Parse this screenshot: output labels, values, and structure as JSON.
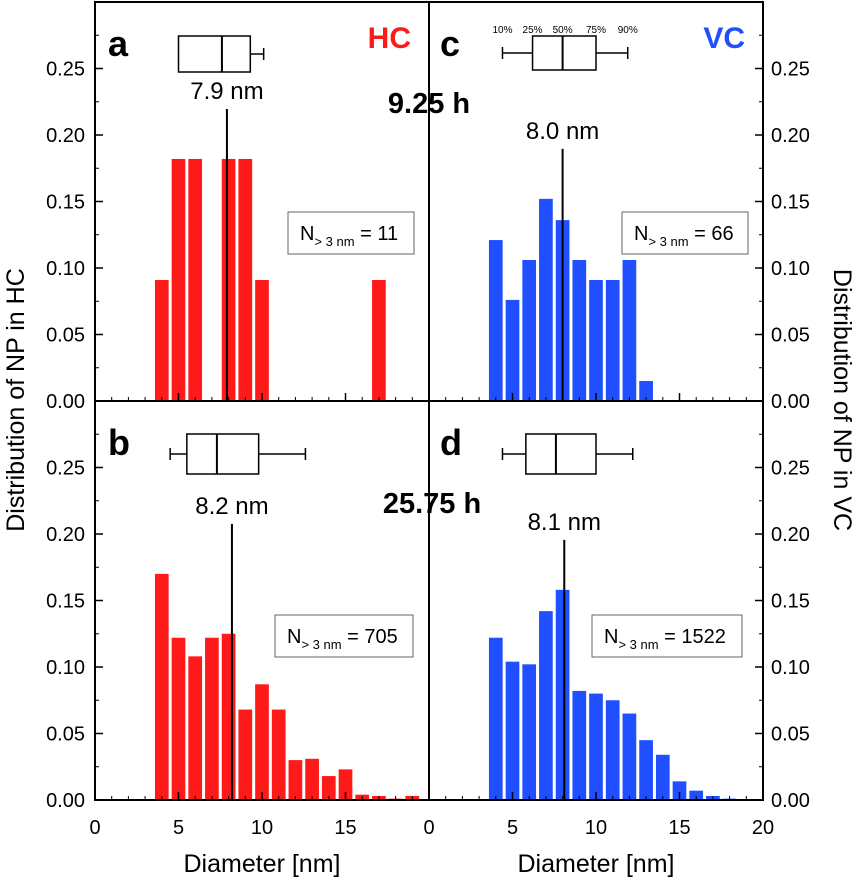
{
  "figure": {
    "ylabel_left": "Distribution of NP in HC",
    "ylabel_right": "Distribution of NP in VC",
    "xlabel": "Diameter [nm]",
    "time_top": "9.25 h",
    "time_bottom": "25.75 h",
    "legend_hc": "HC",
    "legend_vc": "VC",
    "colors": {
      "hc": "#ff1a1a",
      "vc": "#1f4fff",
      "axis": "#000000"
    }
  },
  "chart_data": [
    {
      "id": "a",
      "panel_label": "a",
      "type": "bar",
      "series_name": "HC",
      "xlim": [
        0,
        20
      ],
      "ylim": [
        0,
        0.3
      ],
      "bin_width": 1,
      "x": [
        4,
        5,
        6,
        8,
        9,
        10,
        17
      ],
      "values": [
        0.091,
        0.182,
        0.182,
        0.182,
        0.182,
        0.091,
        0.091
      ],
      "mean": 7.9,
      "mean_label": "7.9 nm",
      "n_label": "= 11",
      "n_subscript": "> 3 nm",
      "n_symbol": "N",
      "boxplot": {
        "p10": null,
        "p25": 5,
        "p50": 7.6,
        "p75": 9.3,
        "p90": 10.1
      }
    },
    {
      "id": "c",
      "panel_label": "c",
      "type": "bar",
      "series_name": "VC",
      "xlim": [
        0,
        20
      ],
      "ylim": [
        0,
        0.3
      ],
      "bin_width": 1,
      "x": [
        4,
        5,
        6,
        7,
        8,
        9,
        10,
        11,
        12,
        13
      ],
      "values": [
        0.121,
        0.076,
        0.106,
        0.152,
        0.136,
        0.106,
        0.091,
        0.091,
        0.106,
        0.015
      ],
      "mean": 8.0,
      "mean_label": "8.0 nm",
      "n_label": "= 66",
      "n_subscript": "> 3 nm",
      "n_symbol": "N",
      "boxplot": {
        "p10": 4.4,
        "p25": 6.2,
        "p50": 8.0,
        "p75": 10.0,
        "p90": 11.9
      },
      "boxplot_labels": [
        "10%",
        "25%",
        "50%",
        "75%",
        "90%"
      ]
    },
    {
      "id": "b",
      "panel_label": "b",
      "type": "bar",
      "series_name": "HC",
      "xlim": [
        0,
        20
      ],
      "ylim": [
        0,
        0.3
      ],
      "bin_width": 1,
      "x": [
        4,
        5,
        6,
        7,
        8,
        9,
        10,
        11,
        12,
        13,
        14,
        15,
        16,
        17,
        18,
        19
      ],
      "values": [
        0.17,
        0.122,
        0.108,
        0.122,
        0.125,
        0.068,
        0.087,
        0.068,
        0.03,
        0.031,
        0.018,
        0.023,
        0.004,
        0.003,
        0.001,
        0.003
      ],
      "mean": 8.2,
      "mean_label": "8.2 nm",
      "n_label": "= 705",
      "n_subscript": "> 3 nm",
      "n_symbol": "N",
      "boxplot": {
        "p10": 4.5,
        "p25": 5.5,
        "p50": 7.3,
        "p75": 9.8,
        "p90": 12.6
      }
    },
    {
      "id": "d",
      "panel_label": "d",
      "type": "bar",
      "series_name": "VC",
      "xlim": [
        0,
        20
      ],
      "ylim": [
        0,
        0.3
      ],
      "bin_width": 1,
      "x": [
        4,
        5,
        6,
        7,
        8,
        9,
        10,
        11,
        12,
        13,
        14,
        15,
        16,
        17,
        18
      ],
      "values": [
        0.122,
        0.104,
        0.102,
        0.142,
        0.158,
        0.082,
        0.08,
        0.075,
        0.065,
        0.045,
        0.034,
        0.014,
        0.007,
        0.003,
        0.001
      ],
      "mean": 8.1,
      "mean_label": "8.1 nm",
      "n_label": "= 1522",
      "n_subscript": "> 3 nm",
      "n_symbol": "N",
      "boxplot": {
        "p10": 4.4,
        "p25": 5.8,
        "p50": 7.6,
        "p75": 10.0,
        "p90": 12.2
      }
    }
  ],
  "axes": {
    "y_ticks": [
      "0.00",
      "0.05",
      "0.10",
      "0.15",
      "0.20",
      "0.25"
    ],
    "x_ticks_left": [
      "0",
      "5",
      "10",
      "15",
      ""
    ],
    "x_ticks_right": [
      "0",
      "5",
      "10",
      "15",
      "20"
    ]
  }
}
